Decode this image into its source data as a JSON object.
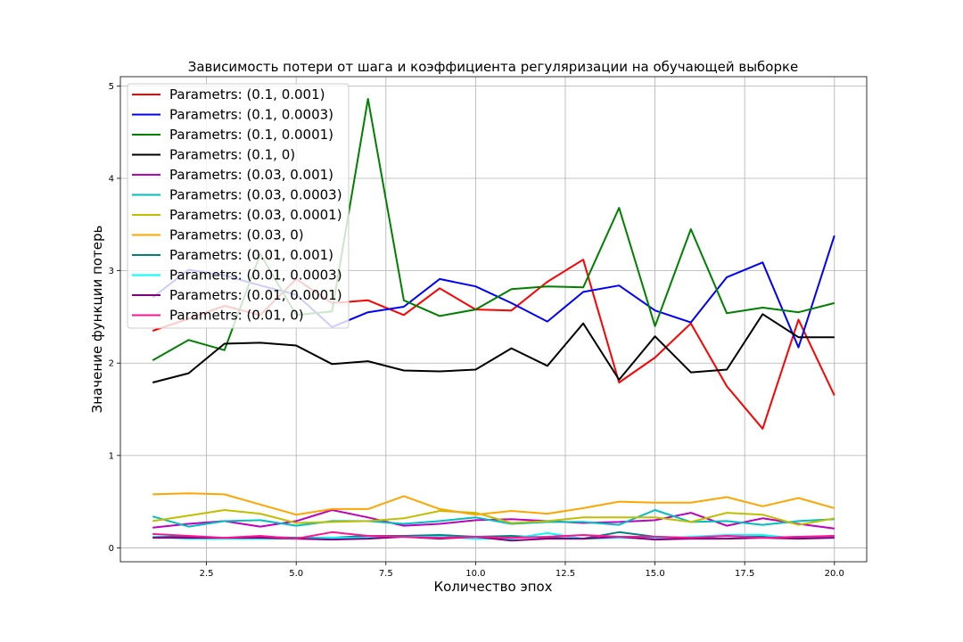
{
  "chart_data": {
    "type": "line",
    "title": "Зависимость потери от шага и коэффициента регуляризации на обучающей выборке",
    "xlabel": "Количество эпох",
    "ylabel": "Значение функции потерь",
    "xlim": [
      0.1,
      20.9
    ],
    "ylim": [
      -0.15,
      5.1
    ],
    "xticks": [
      2.5,
      5.0,
      7.5,
      10.0,
      12.5,
      15.0,
      17.5,
      20.0
    ],
    "xtick_labels": [
      "2.5",
      "5.0",
      "7.5",
      "10.0",
      "12.5",
      "15.0",
      "17.5",
      "20.0"
    ],
    "yticks": [
      0,
      1,
      2,
      3,
      4,
      5
    ],
    "ytick_labels": [
      "0",
      "1",
      "2",
      "3",
      "4",
      "5"
    ],
    "grid": true,
    "legend_position": "top-left",
    "x": [
      1,
      2,
      3,
      4,
      5,
      6,
      7,
      8,
      9,
      10,
      11,
      12,
      13,
      14,
      15,
      16,
      17,
      18,
      19,
      20
    ],
    "series": [
      {
        "name": "Parametrs: (0.1, 0.001)",
        "color": "#ff0000",
        "values": [
          2.35,
          2.48,
          2.62,
          2.52,
          2.91,
          2.65,
          2.68,
          2.52,
          2.81,
          2.58,
          2.57,
          2.88,
          3.12,
          1.79,
          2.06,
          2.43,
          1.75,
          1.29,
          2.47,
          1.65
        ]
      },
      {
        "name": "Parametrs: (0.1, 0.0003)",
        "color": "#0000ff",
        "values": [
          2.71,
          3.01,
          2.95,
          2.84,
          2.74,
          2.39,
          2.55,
          2.61,
          2.91,
          2.83,
          2.65,
          2.45,
          2.77,
          2.84,
          2.57,
          2.44,
          2.93,
          3.09,
          2.17,
          3.38
        ]
      },
      {
        "name": "Parametrs: (0.1, 0.0001)",
        "color": "#008000",
        "values": [
          2.03,
          2.25,
          2.14,
          3.18,
          2.52,
          2.56,
          4.86,
          2.68,
          2.51,
          2.58,
          2.8,
          2.83,
          2.82,
          3.68,
          2.4,
          3.45,
          2.54,
          2.6,
          2.55,
          2.65
        ]
      },
      {
        "name": "Parametrs: (0.1, 0)",
        "color": "#000000",
        "values": [
          1.79,
          1.89,
          2.21,
          2.22,
          2.19,
          1.99,
          2.02,
          1.92,
          1.91,
          1.93,
          2.16,
          1.97,
          2.43,
          1.82,
          2.29,
          1.9,
          1.93,
          2.53,
          2.28,
          2.28
        ]
      },
      {
        "name": "Parametrs: (0.03, 0.001)",
        "color": "#bf00bf",
        "values": [
          0.22,
          0.26,
          0.29,
          0.23,
          0.29,
          0.41,
          0.33,
          0.24,
          0.26,
          0.3,
          0.31,
          0.29,
          0.27,
          0.28,
          0.3,
          0.38,
          0.24,
          0.32,
          0.26,
          0.21
        ]
      },
      {
        "name": "Parametrs: (0.03, 0.0003)",
        "color": "#00bfbf",
        "values": [
          0.34,
          0.23,
          0.29,
          0.3,
          0.24,
          0.29,
          0.29,
          0.26,
          0.29,
          0.33,
          0.26,
          0.28,
          0.28,
          0.25,
          0.41,
          0.28,
          0.29,
          0.25,
          0.29,
          0.31
        ]
      },
      {
        "name": "Parametrs: (0.03, 0.0001)",
        "color": "#bfbf00",
        "values": [
          0.29,
          0.35,
          0.41,
          0.37,
          0.27,
          0.28,
          0.29,
          0.32,
          0.4,
          0.38,
          0.27,
          0.29,
          0.33,
          0.33,
          0.33,
          0.28,
          0.38,
          0.36,
          0.25,
          0.32
        ]
      },
      {
        "name": "Parametrs: (0.03, 0)",
        "color": "#ffa500",
        "values": [
          0.58,
          0.59,
          0.58,
          0.47,
          0.36,
          0.42,
          0.42,
          0.56,
          0.42,
          0.36,
          0.4,
          0.37,
          0.43,
          0.5,
          0.49,
          0.49,
          0.55,
          0.45,
          0.54,
          0.43
        ]
      },
      {
        "name": "Parametrs: (0.01, 0.001)",
        "color": "#008080",
        "values": [
          0.12,
          0.12,
          0.1,
          0.12,
          0.11,
          0.11,
          0.13,
          0.13,
          0.14,
          0.12,
          0.13,
          0.11,
          0.1,
          0.17,
          0.12,
          0.11,
          0.13,
          0.12,
          0.11,
          0.13
        ]
      },
      {
        "name": "Parametrs: (0.01, 0.0003)",
        "color": "#00ffff",
        "values": [
          0.12,
          0.1,
          0.1,
          0.1,
          0.1,
          0.11,
          0.11,
          0.12,
          0.12,
          0.1,
          0.1,
          0.16,
          0.1,
          0.11,
          0.1,
          0.12,
          0.14,
          0.14,
          0.1,
          0.12
        ]
      },
      {
        "name": "Parametrs: (0.01, 0.0001)",
        "color": "#800080",
        "values": [
          0.11,
          0.11,
          0.11,
          0.11,
          0.1,
          0.09,
          0.1,
          0.12,
          0.1,
          0.12,
          0.08,
          0.1,
          0.1,
          0.12,
          0.09,
          0.1,
          0.1,
          0.11,
          0.1,
          0.11
        ]
      },
      {
        "name": "Parametrs: (0.01, 0)",
        "color": "#ff1493",
        "values": [
          0.15,
          0.13,
          0.11,
          0.13,
          0.1,
          0.17,
          0.13,
          0.12,
          0.11,
          0.12,
          0.11,
          0.12,
          0.14,
          0.12,
          0.12,
          0.11,
          0.13,
          0.11,
          0.12,
          0.13
        ]
      }
    ]
  }
}
